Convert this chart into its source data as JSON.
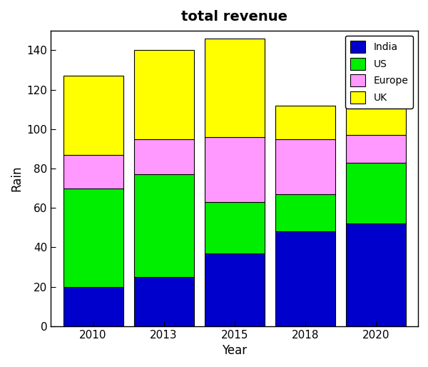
{
  "years": [
    "2010",
    "2013",
    "2015",
    "2018",
    "2020"
  ],
  "india": [
    20,
    25,
    37,
    48,
    52
  ],
  "us": [
    50,
    52,
    26,
    19,
    31
  ],
  "europe": [
    17,
    18,
    33,
    28,
    14
  ],
  "uk": [
    40,
    45,
    50,
    17,
    18
  ],
  "colors": {
    "India": "#0000CC",
    "US": "#00EE00",
    "Europe": "#FF99FF",
    "UK": "#FFFF00"
  },
  "title": "total revenue",
  "xlabel": "Year",
  "ylabel": "Rain",
  "ylim": [
    0,
    150
  ],
  "yticks": [
    0,
    20,
    40,
    60,
    80,
    100,
    120,
    140
  ],
  "title_fontsize": 14,
  "label_fontsize": 12,
  "legend_labels": [
    "India",
    "US",
    "Europe",
    "UK"
  ],
  "bar_width": 0.85,
  "background_color": "#ffffff",
  "tick_label_fontsize": 11
}
